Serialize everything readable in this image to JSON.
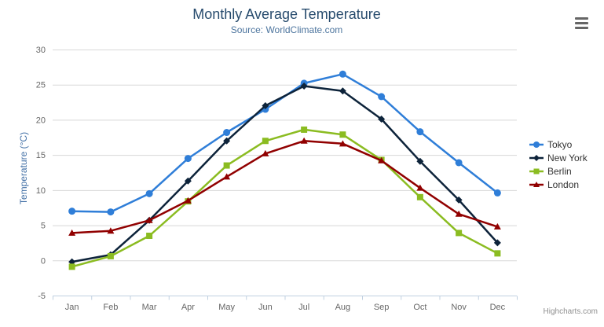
{
  "header": {
    "title": "Monthly Average Temperature",
    "subtitle": "Source: WorldClimate.com"
  },
  "credits_label": "Highcharts.com",
  "menu_icon": "hamburger-menu-icon",
  "colors": {
    "title": "#274b6d",
    "subtitle": "#4d759e",
    "axis_title": "#4572a7",
    "axis_labels": "#666666",
    "gridline": "#d8d8d8",
    "axis_line": "#c0d0e0",
    "legend_text": "#333333",
    "credits": "#909090"
  },
  "chart_data": {
    "type": "line",
    "title": "Monthly Average Temperature",
    "subtitle": "Source: WorldClimate.com",
    "categories": [
      "Jan",
      "Feb",
      "Mar",
      "Apr",
      "May",
      "Jun",
      "Jul",
      "Aug",
      "Sep",
      "Oct",
      "Nov",
      "Dec"
    ],
    "xlabel": "",
    "ylabel": "Temperature (°C)",
    "ylim": [
      -5,
      30
    ],
    "ytick_step": 5,
    "grid": true,
    "legend_position": "right",
    "series": [
      {
        "name": "Tokyo",
        "color": "#2f7ed8",
        "marker": "circle",
        "values": [
          7.0,
          6.9,
          9.5,
          14.5,
          18.2,
          21.5,
          25.2,
          26.5,
          23.3,
          18.3,
          13.9,
          9.6
        ]
      },
      {
        "name": "New York",
        "color": "#0d233a",
        "marker": "diamond",
        "values": [
          -0.2,
          0.8,
          5.7,
          11.3,
          17.0,
          22.0,
          24.8,
          24.1,
          20.1,
          14.1,
          8.6,
          2.5
        ]
      },
      {
        "name": "Berlin",
        "color": "#8bbc21",
        "marker": "square",
        "values": [
          -0.9,
          0.6,
          3.5,
          8.4,
          13.5,
          17.0,
          18.6,
          17.9,
          14.3,
          9.0,
          3.9,
          1.0
        ]
      },
      {
        "name": "London",
        "color": "#910000",
        "marker": "triangle",
        "values": [
          3.9,
          4.2,
          5.7,
          8.5,
          11.9,
          15.2,
          17.0,
          16.6,
          14.2,
          10.3,
          6.6,
          4.8
        ]
      }
    ]
  }
}
